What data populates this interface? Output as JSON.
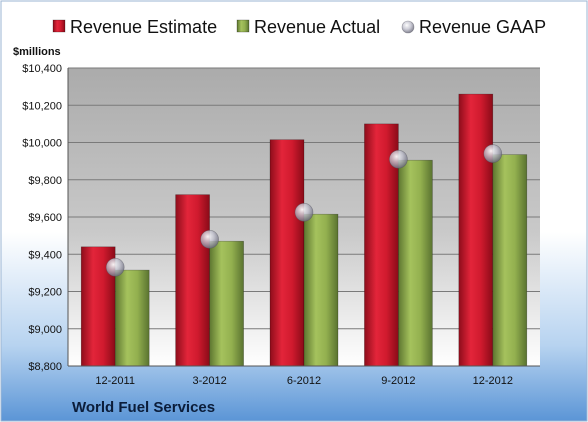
{
  "chart_data": {
    "type": "bar",
    "title": "",
    "ylabel": "$millions",
    "xlabel": "",
    "company": "World Fuel Services",
    "categories": [
      "12-2011",
      "3-2012",
      "6-2012",
      "9-2012",
      "12-2012"
    ],
    "ylim": [
      8800,
      10400
    ],
    "yticks": [
      8800,
      9000,
      9200,
      9400,
      9600,
      9800,
      10000,
      10200,
      10400
    ],
    "ytick_labels": [
      "$8,800",
      "$9,000",
      "$9,200",
      "$9,400",
      "$9,600",
      "$9,800",
      "$10,000",
      "$10,200",
      "$10,400"
    ],
    "grid": true,
    "legend_position": "top",
    "series": [
      {
        "name": "Revenue Estimate",
        "type": "bar",
        "color": "#c8102e",
        "values": [
          9440,
          9720,
          10015,
          10100,
          10260
        ]
      },
      {
        "name": "Revenue Actual",
        "type": "bar",
        "color": "#8ba64a",
        "values": [
          9315,
          9470,
          9615,
          9905,
          9935
        ]
      },
      {
        "name": "Revenue GAAP",
        "type": "marker",
        "color": "#b4b4c4",
        "values": [
          9330,
          9480,
          9625,
          9910,
          9940
        ]
      }
    ]
  }
}
